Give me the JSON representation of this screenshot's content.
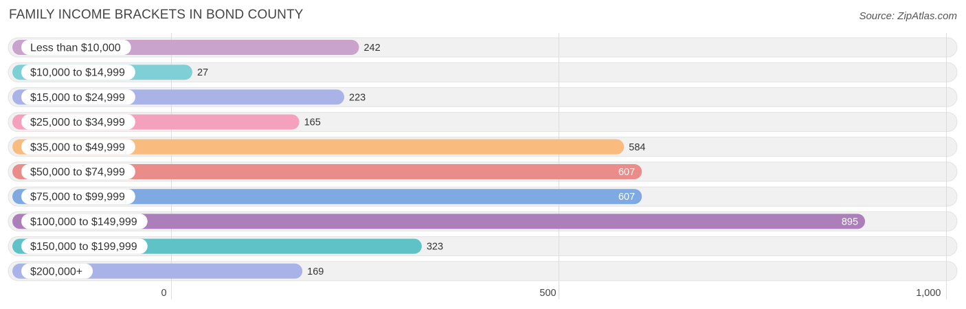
{
  "header": {
    "title": "FAMILY INCOME BRACKETS IN BOND COUNTY",
    "source": "Source: ZipAtlas.com"
  },
  "chart_data": {
    "type": "bar",
    "orientation": "horizontal",
    "title": "FAMILY INCOME BRACKETS IN BOND COUNTY",
    "xlabel": "",
    "ylabel": "",
    "xlim": [
      0,
      1000
    ],
    "ticks": [
      0,
      500,
      1000
    ],
    "tick_labels": [
      "0",
      "500",
      "1,000"
    ],
    "grid": true,
    "categories": [
      "Less than $10,000",
      "$10,000 to $14,999",
      "$15,000 to $24,999",
      "$25,000 to $34,999",
      "$35,000 to $49,999",
      "$50,000 to $74,999",
      "$75,000 to $99,999",
      "$100,000 to $149,999",
      "$150,000 to $199,999",
      "$200,000+"
    ],
    "values": [
      242,
      27,
      223,
      165,
      584,
      607,
      607,
      895,
      323,
      169
    ],
    "value_labels": [
      "242",
      "27",
      "223",
      "165",
      "584",
      "607",
      "607",
      "895",
      "323",
      "169"
    ],
    "colors": [
      "#c9a3cc",
      "#7fd0d6",
      "#aab3e8",
      "#f5a0bd",
      "#f9bc7e",
      "#e98c8a",
      "#7fa9e2",
      "#ad7fba",
      "#5fc2c6",
      "#aab3e8"
    ],
    "inside_label": [
      false,
      false,
      false,
      false,
      false,
      true,
      true,
      true,
      false,
      false
    ]
  }
}
